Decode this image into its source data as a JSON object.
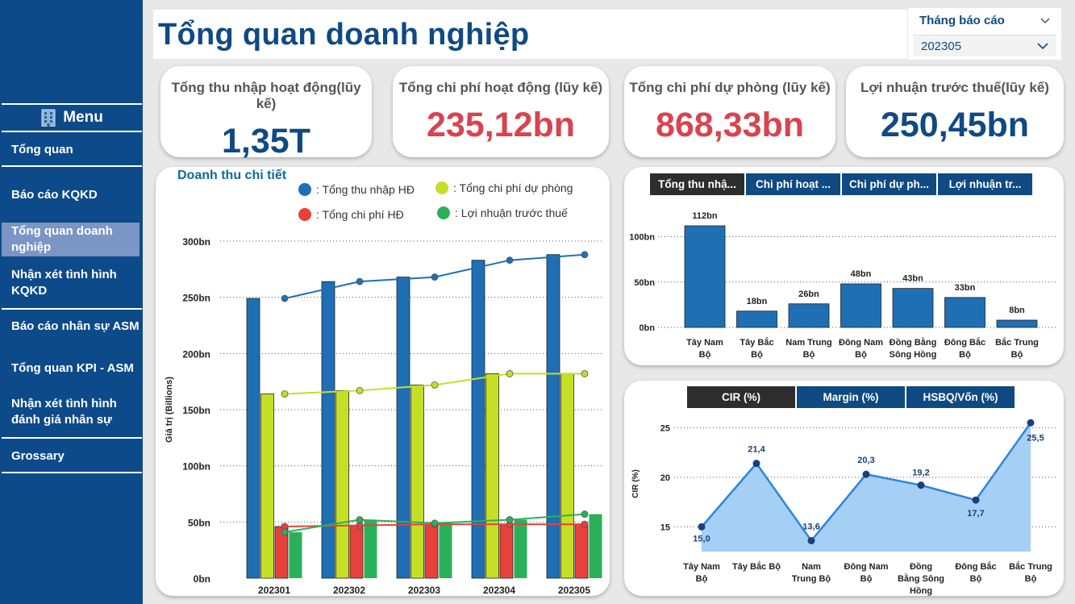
{
  "sidebar": {
    "menu_label": "Menu",
    "items": [
      {
        "label": "Tổng quan"
      },
      {
        "label": "Báo cáo KQKD"
      },
      {
        "label": "Tổng quan doanh nghiệp"
      },
      {
        "label": "Nhận xét tình hình KQKD"
      },
      {
        "label": "Báo cáo nhân sự ASM"
      },
      {
        "label": "Tổng quan KPI - ASM"
      },
      {
        "label": "Nhận xét tình hình đánh giá nhân sự"
      },
      {
        "label": "Grossary"
      }
    ]
  },
  "header": {
    "title": "Tổng quan doanh nghiệp"
  },
  "slicer": {
    "label": "Tháng báo cáo",
    "value": "202305"
  },
  "kpis": [
    {
      "title": "Tổng thu nhập hoạt động(lũy kế)",
      "value": "1,35T",
      "color": "#0f4a82"
    },
    {
      "title": "Tổng chi phí hoạt động (lũy kế)",
      "value": "235,12bn",
      "color": "#d9434f"
    },
    {
      "title": "Tổng chi phí dự phòng (lũy kế)",
      "value": "868,33bn",
      "color": "#d9434f"
    },
    {
      "title": "Lợi nhuận trước thuế(lũy kế)",
      "value": "250,45bn",
      "color": "#0f4a82"
    }
  ],
  "revenue_panel": {
    "title": "Doanh thu chi tiết"
  },
  "region_tabs": [
    "Tổng thu nhậ...",
    "Chi phí hoạt ...",
    "Chi phí dự ph...",
    "Lợi nhuận tr..."
  ],
  "ratio_tabs": [
    "CIR (%)",
    "Margin (%)",
    "HSBQ/Vốn (%)"
  ],
  "chart_data": [
    {
      "type": "bar",
      "title": "Doanh thu chi tiết",
      "ylabel": "Giá trị (Billions)",
      "xlabel": "",
      "categories": [
        "202301",
        "202302",
        "202303",
        "202304",
        "202305"
      ],
      "yticks": [
        "0bn",
        "50bn",
        "100bn",
        "150bn",
        "200bn",
        "250bn",
        "300bn"
      ],
      "ylim": [
        0,
        300
      ],
      "legend_position": "top",
      "series": [
        {
          "name": "Tổng thu nhập HĐ",
          "color": "#1f6fb5",
          "values": [
            249,
            264,
            268,
            283,
            288
          ],
          "line": [
            249,
            264,
            268,
            283,
            288
          ]
        },
        {
          "name": "Tổng chi phí dự phòng",
          "color": "#c5df27",
          "values": [
            164,
            167,
            172,
            182,
            182
          ],
          "line": [
            164,
            167,
            172,
            182,
            182
          ]
        },
        {
          "name": "Tổng chi phí HĐ",
          "color": "#e8413c",
          "values": [
            46,
            47,
            48,
            48,
            48
          ],
          "line": [
            46,
            47,
            48,
            48,
            48
          ]
        },
        {
          "name": "Lợi nhuận trước thuế",
          "color": "#2bb05a",
          "values": [
            41,
            52,
            49,
            52,
            57
          ],
          "line": [
            41,
            52,
            49,
            52,
            57
          ]
        }
      ],
      "grid": true
    },
    {
      "type": "bar",
      "categories": [
        "Tây Nam Bộ",
        "Tây Bắc Bộ",
        "Nam Trung Bộ",
        "Đông Nam Bộ",
        "Đồng Bằng Sông Hồng",
        "Đông Bắc Bộ",
        "Bắc Trung Bộ"
      ],
      "values": [
        112,
        18,
        26,
        48,
        43,
        33,
        8
      ],
      "data_labels": [
        "112bn",
        "18bn",
        "26bn",
        "48bn",
        "43bn",
        "33bn",
        "8bn"
      ],
      "yticks": [
        "0bn",
        "50bn",
        "100bn"
      ],
      "ylim": [
        0,
        120
      ],
      "color": "#1f6fb5",
      "grid": true
    },
    {
      "type": "area",
      "ylabel": "CIR (%)",
      "categories": [
        "Tây Nam Bộ",
        "Tây Bắc Bộ",
        "Nam Trung Bộ",
        "Đông Nam Bộ",
        "Đồng Bằng Sông Hồng",
        "Đông Bắc Bộ",
        "Bắc Trung Bộ"
      ],
      "values": [
        15.0,
        21.4,
        13.6,
        20.3,
        19.2,
        17.7,
        25.5
      ],
      "data_labels": [
        "15,0",
        "21,4",
        "13,6",
        "20,3",
        "19,2",
        "17,7",
        "25,5"
      ],
      "yticks": [
        15,
        20,
        25
      ],
      "ylim": [
        12.5,
        26.5
      ],
      "line_color": "#2a86e0",
      "fill_color": "#a6cff5",
      "grid": true
    }
  ]
}
